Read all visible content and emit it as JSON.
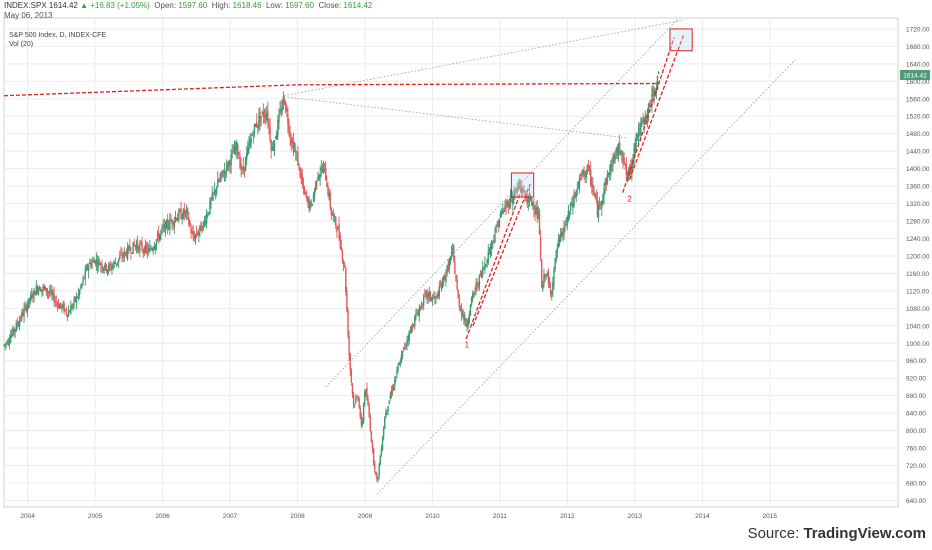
{
  "header": {
    "symbol": "INDEX:SPX",
    "last": "1614.42",
    "change": "▲ +16.83 (+1.05%)",
    "open_label": "Open:",
    "open": "1597.60",
    "high_label": "High:",
    "high": "1618.46",
    "low_label": "Low:",
    "low": "1597.60",
    "close_label": "Close:",
    "close": "1614.42",
    "date": "May 06, 2013"
  },
  "legend": {
    "series": "S&P 500 Index, D, INDEX-CFE",
    "volume": "Vol (20)"
  },
  "source": {
    "prefix": "Source: ",
    "brand": "TradingView.com"
  },
  "colors": {
    "up": "#3d9970",
    "down": "#e05a5a",
    "trend_red": "#e02020",
    "trend_gray": "#9a9a9a",
    "grid": "#ececec",
    "price_badge": "#4f9a78"
  },
  "chart_data": {
    "type": "candlestick",
    "title": "S&P 500 Index, D, INDEX-CFE",
    "x_ticks": [
      "2004",
      "2005",
      "2006",
      "2007",
      "2008",
      "2009",
      "2010",
      "2011",
      "2012",
      "2013",
      "2014",
      "2015"
    ],
    "y_ticks": [
      "640.00",
      "680.00",
      "720.00",
      "760.00",
      "800.00",
      "840.00",
      "880.00",
      "920.00",
      "960.00",
      "1000.00",
      "1040.00",
      "1080.00",
      "1120.00",
      "1160.00",
      "1200.00",
      "1240.00",
      "1280.00",
      "1320.00",
      "1360.00",
      "1400.00",
      "1440.00",
      "1480.00",
      "1520.00",
      "1560.00",
      "1600.00",
      "1640.00",
      "1680.00",
      "1720.00"
    ],
    "ylim": [
      625,
      1745
    ],
    "xlim": [
      2003.65,
      2016.9
    ],
    "last_price_label": "1614.42",
    "price_path": [
      [
        2003.65,
        995
      ],
      [
        2003.8,
        1030
      ],
      [
        2004.0,
        1090
      ],
      [
        2004.15,
        1130
      ],
      [
        2004.3,
        1120
      ],
      [
        2004.45,
        1090
      ],
      [
        2004.6,
        1070
      ],
      [
        2004.75,
        1110
      ],
      [
        2004.9,
        1180
      ],
      [
        2005.0,
        1190
      ],
      [
        2005.2,
        1170
      ],
      [
        2005.4,
        1200
      ],
      [
        2005.6,
        1225
      ],
      [
        2005.8,
        1210
      ],
      [
        2006.0,
        1260
      ],
      [
        2006.2,
        1290
      ],
      [
        2006.35,
        1300
      ],
      [
        2006.45,
        1240
      ],
      [
        2006.6,
        1270
      ],
      [
        2006.8,
        1360
      ],
      [
        2007.0,
        1420
      ],
      [
        2007.1,
        1450
      ],
      [
        2007.18,
        1390
      ],
      [
        2007.35,
        1490
      ],
      [
        2007.45,
        1520
      ],
      [
        2007.55,
        1530
      ],
      [
        2007.62,
        1440
      ],
      [
        2007.75,
        1530
      ],
      [
        2007.8,
        1565
      ],
      [
        2007.9,
        1470
      ],
      [
        2008.0,
        1420
      ],
      [
        2008.1,
        1340
      ],
      [
        2008.2,
        1310
      ],
      [
        2008.3,
        1390
      ],
      [
        2008.4,
        1400
      ],
      [
        2008.5,
        1300
      ],
      [
        2008.6,
        1260
      ],
      [
        2008.7,
        1170
      ],
      [
        2008.77,
        960
      ],
      [
        2008.83,
        860
      ],
      [
        2008.9,
        880
      ],
      [
        2008.95,
        800
      ],
      [
        2009.0,
        900
      ],
      [
        2009.05,
        850
      ],
      [
        2009.12,
        740
      ],
      [
        2009.18,
        680
      ],
      [
        2009.3,
        840
      ],
      [
        2009.45,
        920
      ],
      [
        2009.6,
        1000
      ],
      [
        2009.75,
        1060
      ],
      [
        2009.9,
        1110
      ],
      [
        2010.05,
        1100
      ],
      [
        2010.2,
        1160
      ],
      [
        2010.3,
        1210
      ],
      [
        2010.38,
        1100
      ],
      [
        2010.5,
        1040
      ],
      [
        2010.6,
        1110
      ],
      [
        2010.75,
        1170
      ],
      [
        2010.9,
        1240
      ],
      [
        2011.0,
        1290
      ],
      [
        2011.15,
        1330
      ],
      [
        2011.3,
        1360
      ],
      [
        2011.4,
        1330
      ],
      [
        2011.5,
        1320
      ],
      [
        2011.58,
        1280
      ],
      [
        2011.62,
        1120
      ],
      [
        2011.68,
        1170
      ],
      [
        2011.75,
        1110
      ],
      [
        2011.85,
        1220
      ],
      [
        2011.95,
        1260
      ],
      [
        2012.05,
        1310
      ],
      [
        2012.2,
        1380
      ],
      [
        2012.3,
        1400
      ],
      [
        2012.4,
        1340
      ],
      [
        2012.45,
        1300
      ],
      [
        2012.55,
        1360
      ],
      [
        2012.7,
        1430
      ],
      [
        2012.8,
        1450
      ],
      [
        2012.88,
        1380
      ],
      [
        2012.95,
        1400
      ],
      [
        2013.0,
        1470
      ],
      [
        2013.15,
        1510
      ],
      [
        2013.25,
        1560
      ],
      [
        2013.33,
        1600
      ],
      [
        2013.36,
        1614
      ]
    ],
    "trendlines_red": [
      [
        [
          2003.65,
          1567
        ],
        [
          2008.0,
          1592
        ],
        [
          2013.36,
          1595
        ]
      ],
      [
        [
          2010.5,
          1010
        ],
        [
          2011.33,
          1355
        ]
      ],
      [
        [
          2010.6,
          1040
        ],
        [
          2011.45,
          1365
        ]
      ],
      [
        [
          2012.82,
          1345
        ],
        [
          2013.58,
          1700
        ]
      ],
      [
        [
          2012.92,
          1375
        ],
        [
          2013.72,
          1705
        ]
      ]
    ],
    "trendlines_gray": [
      [
        [
          2007.8,
          1567
        ],
        [
          2013.72,
          1740
        ]
      ],
      [
        [
          2007.8,
          1565
        ],
        [
          2012.9,
          1470
        ]
      ],
      [
        [
          2008.42,
          900
        ],
        [
          2013.65,
          1745
        ]
      ],
      [
        [
          2009.18,
          655
        ],
        [
          2015.38,
          1650
        ]
      ]
    ],
    "boxes": [
      {
        "x0": 2011.17,
        "x1": 2011.5,
        "y0": 1335,
        "y1": 1390
      },
      {
        "x0": 2013.52,
        "x1": 2013.85,
        "y0": 1670,
        "y1": 1720
      }
    ],
    "annotations": [
      {
        "text": "1",
        "x": 2010.51,
        "y": 990
      },
      {
        "text": "2",
        "x": 2012.92,
        "y": 1325
      }
    ]
  }
}
